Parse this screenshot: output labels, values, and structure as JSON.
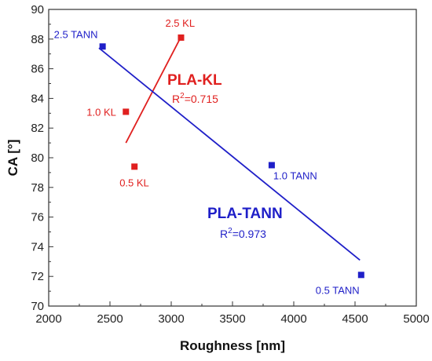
{
  "chart_data": {
    "type": "scatter",
    "xlabel": "Roughness [nm]",
    "ylabel": "CA [°]",
    "xlim": [
      2000,
      5000
    ],
    "ylim": [
      70,
      90
    ],
    "xticks": [
      2000,
      2500,
      3000,
      3500,
      4000,
      4500,
      5000
    ],
    "yticks": [
      70,
      72,
      74,
      76,
      78,
      80,
      82,
      84,
      86,
      88,
      90
    ],
    "grid": false,
    "series": [
      {
        "name": "PLA-KL",
        "color": "#e0201f",
        "marker": "square",
        "points": [
          {
            "x": 2630,
            "y": 83.1,
            "label": "1.0 KL"
          },
          {
            "x": 2700,
            "y": 79.4,
            "label": "0.5 KL"
          },
          {
            "x": 3080,
            "y": 88.1,
            "label": "2.5 KL"
          }
        ],
        "fit": {
          "x": [
            2630,
            3070
          ],
          "y": [
            81.0,
            88.0
          ],
          "title": "PLA-KL",
          "r2_prefix": "R",
          "r2_sup": "2",
          "r2_value": "=0.715"
        }
      },
      {
        "name": "PLA-TANN",
        "color": "#1f1fc8",
        "marker": "square",
        "points": [
          {
            "x": 2440,
            "y": 87.5,
            "label": "2.5 TANN"
          },
          {
            "x": 3820,
            "y": 79.5,
            "label": "1.0 TANN"
          },
          {
            "x": 4550,
            "y": 72.1,
            "label": "0.5 TANN"
          }
        ],
        "fit": {
          "x": [
            2410,
            4540
          ],
          "y": [
            87.4,
            73.1
          ],
          "title": "PLA-TANN",
          "r2_prefix": "R",
          "r2_sup": "2",
          "r2_value": "=0.973"
        }
      }
    ]
  }
}
